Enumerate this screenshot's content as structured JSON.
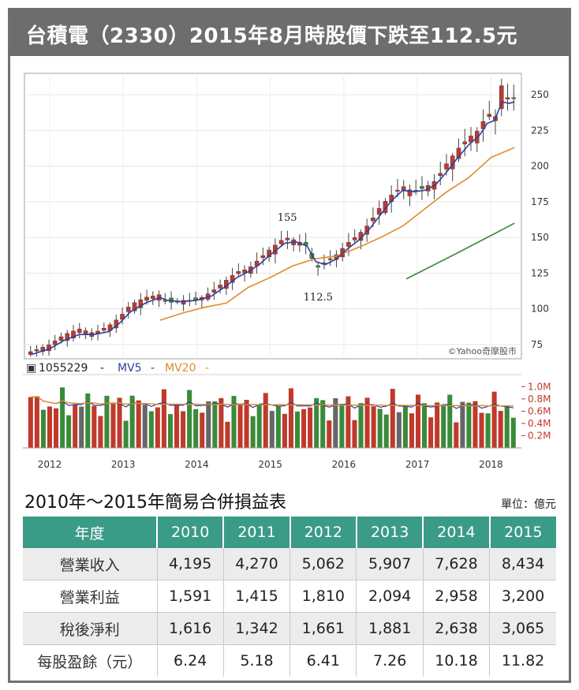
{
  "header": {
    "title": "台積電（2330）2015年8月時股價下跌至112.5元"
  },
  "chart_data": [
    {
      "type": "candlestick",
      "x_range": [
        2011.7,
        2018.35
      ],
      "ylim": [
        65,
        265
      ],
      "y_ticks": [
        75,
        100,
        125,
        150,
        175,
        200,
        225,
        250
      ],
      "x_ticks": [
        2012,
        2013,
        2014,
        2015,
        2016,
        2017,
        2018
      ],
      "watermark": "©Yahoo奇摩股市",
      "annotations": [
        {
          "text": "155",
          "x": 2015.23,
          "y": 155
        },
        {
          "text": "112.5",
          "x": 2015.65,
          "y": 112.5
        }
      ],
      "close_path": [
        [
          2011.75,
          70
        ],
        [
          2012.0,
          75
        ],
        [
          2012.2,
          82
        ],
        [
          2012.4,
          86
        ],
        [
          2012.6,
          83
        ],
        [
          2012.8,
          88
        ],
        [
          2012.95,
          94
        ],
        [
          2013.1,
          103
        ],
        [
          2013.3,
          108
        ],
        [
          2013.5,
          110
        ],
        [
          2013.6,
          104
        ],
        [
          2013.8,
          106
        ],
        [
          2014.0,
          106
        ],
        [
          2014.2,
          112
        ],
        [
          2014.4,
          120
        ],
        [
          2014.55,
          126
        ],
        [
          2014.7,
          128
        ],
        [
          2014.85,
          135
        ],
        [
          2015.0,
          142
        ],
        [
          2015.2,
          150
        ],
        [
          2015.35,
          148
        ],
        [
          2015.5,
          144
        ],
        [
          2015.62,
          128
        ],
        [
          2015.75,
          133
        ],
        [
          2015.9,
          138
        ],
        [
          2016.05,
          146
        ],
        [
          2016.2,
          152
        ],
        [
          2016.35,
          160
        ],
        [
          2016.5,
          172
        ],
        [
          2016.65,
          180
        ],
        [
          2016.8,
          186
        ],
        [
          2016.95,
          182
        ],
        [
          2017.1,
          185
        ],
        [
          2017.25,
          190
        ],
        [
          2017.4,
          202
        ],
        [
          2017.55,
          212
        ],
        [
          2017.7,
          220
        ],
        [
          2017.85,
          226
        ],
        [
          2017.95,
          238
        ],
        [
          2018.05,
          232
        ],
        [
          2018.15,
          258
        ],
        [
          2018.25,
          245
        ],
        [
          2018.32,
          248
        ]
      ],
      "ma5_path": [
        [
          2011.75,
          68
        ],
        [
          2012.0,
          72
        ],
        [
          2012.2,
          78
        ],
        [
          2012.4,
          82
        ],
        [
          2012.6,
          82
        ],
        [
          2012.8,
          84
        ],
        [
          2012.95,
          90
        ],
        [
          2013.1,
          98
        ],
        [
          2013.3,
          104
        ],
        [
          2013.5,
          108
        ],
        [
          2013.6,
          106
        ],
        [
          2013.8,
          105
        ],
        [
          2014.0,
          106
        ],
        [
          2014.2,
          109
        ],
        [
          2014.4,
          116
        ],
        [
          2014.55,
          122
        ],
        [
          2014.7,
          126
        ],
        [
          2014.85,
          131
        ],
        [
          2015.0,
          138
        ],
        [
          2015.2,
          146
        ],
        [
          2015.35,
          147
        ],
        [
          2015.5,
          144
        ],
        [
          2015.62,
          133
        ],
        [
          2015.75,
          131
        ],
        [
          2015.9,
          135
        ],
        [
          2016.05,
          142
        ],
        [
          2016.2,
          148
        ],
        [
          2016.35,
          156
        ],
        [
          2016.5,
          166
        ],
        [
          2016.65,
          176
        ],
        [
          2016.8,
          183
        ],
        [
          2016.95,
          182
        ],
        [
          2017.1,
          183
        ],
        [
          2017.25,
          187
        ],
        [
          2017.4,
          196
        ],
        [
          2017.55,
          206
        ],
        [
          2017.7,
          215
        ],
        [
          2017.85,
          222
        ],
        [
          2017.95,
          230
        ],
        [
          2018.05,
          232
        ],
        [
          2018.15,
          245
        ],
        [
          2018.25,
          244
        ],
        [
          2018.32,
          245
        ]
      ],
      "ma20_path": [
        [
          2013.5,
          92
        ],
        [
          2013.8,
          97
        ],
        [
          2014.1,
          101
        ],
        [
          2014.4,
          104
        ],
        [
          2014.7,
          115
        ],
        [
          2015.0,
          122
        ],
        [
          2015.3,
          130
        ],
        [
          2015.6,
          135
        ],
        [
          2015.9,
          137
        ],
        [
          2016.2,
          143
        ],
        [
          2016.5,
          150
        ],
        [
          2016.8,
          158
        ],
        [
          2017.1,
          170
        ],
        [
          2017.4,
          182
        ],
        [
          2017.7,
          192
        ],
        [
          2018.0,
          206
        ],
        [
          2018.32,
          213
        ]
      ],
      "ma60_path": [
        [
          2016.85,
          121
        ],
        [
          2017.5,
          138
        ],
        [
          2018.32,
          160
        ]
      ]
    },
    {
      "type": "bar",
      "legend": {
        "volume": "1055229",
        "ma5": "MV5",
        "ma20": "MV20",
        "dash": "-"
      },
      "y_ticks": [
        "1.0M",
        "0.8M",
        "0.6M",
        "0.4M",
        "0.2M"
      ],
      "y_tick_values": [
        1.0,
        0.8,
        0.6,
        0.4,
        0.2
      ],
      "ylim": [
        0,
        1.12
      ],
      "volume_base": 0.72,
      "volume_amplitude": 0.28,
      "bar_count": 77
    }
  ],
  "table": {
    "title": "2010年～2015年簡易合併損益表",
    "unit": "單位：億元",
    "headers": [
      "年度",
      "2010",
      "2011",
      "2012",
      "2013",
      "2014",
      "2015"
    ],
    "rows": [
      {
        "label": "營業收入",
        "values": [
          "4,195",
          "4,270",
          "5,062",
          "5,907",
          "7,628",
          "8,434"
        ]
      },
      {
        "label": "營業利益",
        "values": [
          "1,591",
          "1,415",
          "1,810",
          "2,094",
          "2,958",
          "3,200"
        ]
      },
      {
        "label": "稅後淨利",
        "values": [
          "1,616",
          "1,342",
          "1,661",
          "1,881",
          "2,638",
          "3,065"
        ]
      },
      {
        "label": "每股盈餘（元）",
        "values": [
          "6.24",
          "5.18",
          "6.41",
          "7.26",
          "10.18",
          "11.82"
        ]
      }
    ]
  },
  "colors": {
    "up": "#c0392b",
    "down": "#3a8a3a",
    "neutral": "#666666",
    "ma5": "#2d3fa3",
    "ma20": "#e08a2c",
    "ma60": "#3a8a3a",
    "header_bg": "#6d6d6d",
    "table_header": "#3a9b86"
  }
}
